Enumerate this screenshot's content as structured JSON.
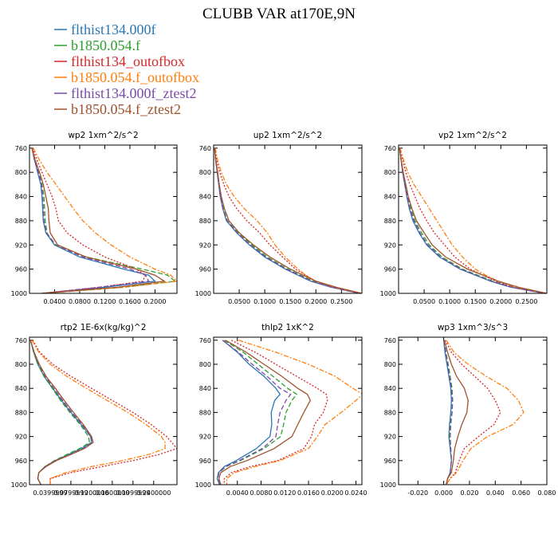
{
  "title": "CLUBB VAR at170E,9N",
  "legend": [
    {
      "name": "flthist134.000f",
      "color": "#2a77b4"
    },
    {
      "name": "b1850.054.f",
      "color": "#2ca02c"
    },
    {
      "name": "flthist134_outofbox",
      "color": "#d62728"
    },
    {
      "name": "b1850.054.f_outofbox",
      "color": "#ff7f0e"
    },
    {
      "name": "flthist134.000f_ztest2",
      "color": "#7b4aa6"
    },
    {
      "name": "b1850.054.f_ztest2",
      "color": "#a0522d"
    }
  ],
  "series_styles": [
    {
      "color": "#2a77b4",
      "dash": ""
    },
    {
      "color": "#2ca02c",
      "dash": "6,3"
    },
    {
      "color": "#d62728",
      "dash": "2,2"
    },
    {
      "color": "#ff7f0e",
      "dash": "6,2,2,2"
    },
    {
      "color": "#7b4aa6",
      "dash": "6,3"
    },
    {
      "color": "#a0522d",
      "dash": ""
    }
  ],
  "chart_data": [
    {
      "type": "line",
      "title": "wp2   1xm^2/s^2",
      "xlim": [
        0.0,
        0.235
      ],
      "ylim": [
        1000,
        755
      ],
      "y_reversed": true,
      "xticks": [
        0.04,
        0.08,
        0.12,
        0.16,
        0.2
      ],
      "xtick_labels": [
        "0.0400",
        "0.0800",
        "0.1200",
        "0.1600",
        "0.2000"
      ],
      "yticks": [
        760,
        800,
        840,
        880,
        920,
        960,
        1000
      ],
      "ytick_labels": [
        "760",
        "800",
        "840",
        "880",
        "920",
        "960",
        "1000"
      ],
      "y": [
        760,
        780,
        800,
        820,
        840,
        860,
        880,
        900,
        920,
        940,
        960,
        970,
        980,
        990,
        1000
      ],
      "series": [
        {
          "values": [
            0.004,
            0.008,
            0.013,
            0.018,
            0.02,
            0.021,
            0.022,
            0.026,
            0.04,
            0.08,
            0.15,
            0.19,
            0.2,
            0.12,
            0.02
          ]
        },
        {
          "values": [
            0.004,
            0.009,
            0.015,
            0.02,
            0.023,
            0.024,
            0.025,
            0.028,
            0.04,
            0.09,
            0.18,
            0.22,
            0.232,
            0.15,
            0.02
          ]
        },
        {
          "values": [
            0.005,
            0.012,
            0.02,
            0.028,
            0.036,
            0.042,
            0.046,
            0.06,
            0.085,
            0.12,
            0.17,
            0.185,
            0.18,
            0.11,
            0.02
          ]
        },
        {
          "values": [
            0.006,
            0.016,
            0.028,
            0.042,
            0.056,
            0.07,
            0.085,
            0.105,
            0.13,
            0.16,
            0.2,
            0.225,
            0.235,
            0.15,
            0.02
          ]
        },
        {
          "values": [
            0.004,
            0.008,
            0.014,
            0.019,
            0.021,
            0.022,
            0.023,
            0.027,
            0.042,
            0.085,
            0.16,
            0.185,
            0.19,
            0.11,
            0.02
          ]
        },
        {
          "values": [
            0.004,
            0.009,
            0.016,
            0.022,
            0.026,
            0.03,
            0.031,
            0.033,
            0.045,
            0.09,
            0.17,
            0.2,
            0.215,
            0.14,
            0.02
          ]
        }
      ]
    },
    {
      "type": "line",
      "title": "up2   1xm^2/s^2",
      "xlim": [
        0.0,
        0.29
      ],
      "ylim": [
        1000,
        755
      ],
      "y_reversed": true,
      "xticks": [
        0.05,
        0.1,
        0.15,
        0.2,
        0.25
      ],
      "xtick_labels": [
        "0.0500",
        "0.1000",
        "0.1500",
        "0.2000",
        "0.2500"
      ],
      "yticks": [
        760,
        800,
        840,
        880,
        920,
        960,
        1000
      ],
      "ytick_labels": [
        "760",
        "800",
        "840",
        "880",
        "920",
        "960",
        "1000"
      ],
      "y": [
        760,
        780,
        800,
        820,
        840,
        860,
        880,
        900,
        920,
        940,
        960,
        970,
        980,
        990,
        1000
      ],
      "series": [
        {
          "values": [
            0.002,
            0.004,
            0.007,
            0.01,
            0.013,
            0.018,
            0.025,
            0.045,
            0.07,
            0.1,
            0.14,
            0.165,
            0.19,
            0.23,
            0.285
          ]
        },
        {
          "values": [
            0.002,
            0.004,
            0.007,
            0.01,
            0.014,
            0.019,
            0.027,
            0.048,
            0.075,
            0.105,
            0.145,
            0.17,
            0.195,
            0.235,
            0.285
          ]
        },
        {
          "values": [
            0.003,
            0.006,
            0.012,
            0.02,
            0.03,
            0.045,
            0.065,
            0.09,
            0.11,
            0.135,
            0.16,
            0.18,
            0.2,
            0.235,
            0.285
          ]
        },
        {
          "values": [
            0.003,
            0.008,
            0.015,
            0.025,
            0.04,
            0.06,
            0.085,
            0.105,
            0.12,
            0.14,
            0.165,
            0.18,
            0.2,
            0.235,
            0.285
          ]
        },
        {
          "values": [
            0.002,
            0.004,
            0.007,
            0.01,
            0.013,
            0.018,
            0.026,
            0.046,
            0.072,
            0.102,
            0.142,
            0.167,
            0.192,
            0.232,
            0.285
          ]
        },
        {
          "values": [
            0.002,
            0.004,
            0.008,
            0.011,
            0.015,
            0.021,
            0.03,
            0.05,
            0.078,
            0.11,
            0.15,
            0.175,
            0.2,
            0.24,
            0.29
          ]
        }
      ]
    },
    {
      "type": "line",
      "title": "vp2   1xm^2/s^2",
      "xlim": [
        0.0,
        0.29
      ],
      "ylim": [
        1000,
        755
      ],
      "y_reversed": true,
      "xticks": [
        0.05,
        0.1,
        0.15,
        0.2,
        0.25
      ],
      "xtick_labels": [
        "0.0500",
        "0.1000",
        "0.1500",
        "0.2000",
        "0.2500"
      ],
      "yticks": [
        760,
        800,
        840,
        880,
        920,
        960,
        1000
      ],
      "ytick_labels": [
        "760",
        "800",
        "840",
        "880",
        "920",
        "960",
        "1000"
      ],
      "y": [
        760,
        780,
        800,
        820,
        840,
        860,
        880,
        900,
        920,
        940,
        960,
        970,
        980,
        990,
        1000
      ],
      "series": [
        {
          "values": [
            0.002,
            0.005,
            0.008,
            0.012,
            0.016,
            0.021,
            0.028,
            0.04,
            0.055,
            0.08,
            0.12,
            0.15,
            0.18,
            0.22,
            0.285
          ]
        },
        {
          "values": [
            0.002,
            0.005,
            0.009,
            0.013,
            0.018,
            0.024,
            0.032,
            0.045,
            0.06,
            0.085,
            0.125,
            0.155,
            0.185,
            0.225,
            0.285
          ]
        },
        {
          "values": [
            0.003,
            0.008,
            0.014,
            0.022,
            0.032,
            0.042,
            0.055,
            0.07,
            0.09,
            0.11,
            0.14,
            0.165,
            0.19,
            0.225,
            0.285
          ]
        },
        {
          "values": [
            0.003,
            0.01,
            0.018,
            0.03,
            0.045,
            0.06,
            0.075,
            0.09,
            0.105,
            0.125,
            0.15,
            0.17,
            0.195,
            0.23,
            0.285
          ]
        },
        {
          "values": [
            0.002,
            0.005,
            0.008,
            0.012,
            0.017,
            0.022,
            0.03,
            0.042,
            0.057,
            0.082,
            0.122,
            0.152,
            0.182,
            0.222,
            0.285
          ]
        },
        {
          "values": [
            0.002,
            0.005,
            0.009,
            0.014,
            0.019,
            0.026,
            0.035,
            0.05,
            0.066,
            0.092,
            0.135,
            0.165,
            0.195,
            0.235,
            0.29
          ]
        }
      ]
    },
    {
      "type": "line",
      "title": "rtp2   1E-6x(kg/kg)^2",
      "xlim": [
        0.0,
        0.285
      ],
      "ylim": [
        1000,
        755
      ],
      "y_reversed": true,
      "xticks": [
        0.04,
        0.08,
        0.12,
        0.16,
        0.2,
        0.24
      ],
      "xtick_labels": [
        "0.0399999",
        "0.0799999",
        "0.1200000",
        "0.1600000",
        "0.1999999",
        "0.2400000"
      ],
      "yticks": [
        760,
        800,
        840,
        880,
        920,
        960,
        1000
      ],
      "ytick_labels": [
        "760",
        "800",
        "840",
        "880",
        "920",
        "960",
        "1000"
      ],
      "y": [
        760,
        780,
        800,
        820,
        840,
        860,
        880,
        900,
        920,
        930,
        940,
        950,
        960,
        970,
        980,
        990,
        1000
      ],
      "series": [
        {
          "values": [
            0.002,
            0.008,
            0.016,
            0.028,
            0.045,
            0.062,
            0.08,
            0.1,
            0.118,
            0.12,
            0.1,
            0.075,
            0.05,
            0.03,
            0.018,
            0.016,
            0.022
          ]
        },
        {
          "values": [
            0.002,
            0.008,
            0.016,
            0.028,
            0.044,
            0.06,
            0.078,
            0.098,
            0.114,
            0.116,
            0.097,
            0.072,
            0.048,
            0.03,
            0.018,
            0.016,
            0.022
          ]
        },
        {
          "values": [
            0.006,
            0.02,
            0.045,
            0.08,
            0.12,
            0.16,
            0.2,
            0.235,
            0.265,
            0.275,
            0.285,
            0.25,
            0.2,
            0.14,
            0.08,
            0.04,
            0.04
          ]
        },
        {
          "values": [
            0.005,
            0.018,
            0.04,
            0.072,
            0.11,
            0.15,
            0.19,
            0.225,
            0.255,
            0.262,
            0.262,
            0.23,
            0.18,
            0.12,
            0.07,
            0.04,
            0.04
          ]
        },
        {
          "values": [
            0.002,
            0.009,
            0.018,
            0.03,
            0.047,
            0.064,
            0.082,
            0.102,
            0.118,
            0.122,
            0.104,
            0.078,
            0.05,
            0.03,
            0.018,
            0.016,
            0.022
          ]
        },
        {
          "values": [
            0.002,
            0.009,
            0.019,
            0.032,
            0.05,
            0.067,
            0.085,
            0.104,
            0.12,
            0.123,
            0.106,
            0.08,
            0.052,
            0.032,
            0.018,
            0.016,
            0.022
          ]
        }
      ]
    },
    {
      "type": "line",
      "title": "thlp2   1xK^2",
      "xlim": [
        0.0,
        0.025
      ],
      "ylim": [
        1000,
        755
      ],
      "y_reversed": true,
      "xticks": [
        0.004,
        0.008,
        0.012,
        0.016,
        0.02,
        0.024
      ],
      "xtick_labels": [
        "0.0040",
        "0.0080",
        "0.0120",
        "0.0160",
        "0.0200",
        "0.0240"
      ],
      "yticks": [
        760,
        800,
        840,
        880,
        920,
        960,
        1000
      ],
      "ytick_labels": [
        "760",
        "800",
        "840",
        "880",
        "920",
        "960",
        "1000"
      ],
      "y": [
        760,
        780,
        800,
        820,
        840,
        850,
        860,
        880,
        900,
        920,
        940,
        960,
        970,
        980,
        990,
        1000
      ],
      "series": [
        {
          "values": [
            0.0015,
            0.004,
            0.006,
            0.0085,
            0.0105,
            0.0112,
            0.0103,
            0.0097,
            0.0098,
            0.0095,
            0.0072,
            0.0038,
            0.0018,
            0.0008,
            0.0006,
            0.001
          ]
        },
        {
          "values": [
            0.0018,
            0.005,
            0.0075,
            0.01,
            0.0125,
            0.014,
            0.0132,
            0.0122,
            0.0118,
            0.0113,
            0.0085,
            0.0045,
            0.0021,
            0.0009,
            0.0007,
            0.0011
          ]
        },
        {
          "values": [
            0.003,
            0.007,
            0.0105,
            0.014,
            0.0175,
            0.019,
            0.0192,
            0.0185,
            0.017,
            0.0165,
            0.0152,
            0.0108,
            0.0062,
            0.003,
            0.0018,
            0.0018
          ]
        },
        {
          "values": [
            0.0042,
            0.0105,
            0.016,
            0.0205,
            0.0235,
            0.0252,
            0.024,
            0.0215,
            0.0188,
            0.0175,
            0.016,
            0.0112,
            0.007,
            0.0035,
            0.0022,
            0.0022
          ]
        },
        {
          "values": [
            0.0015,
            0.0042,
            0.0065,
            0.009,
            0.0112,
            0.013,
            0.0122,
            0.0112,
            0.0108,
            0.0105,
            0.0082,
            0.0043,
            0.002,
            0.0009,
            0.0007,
            0.0011
          ]
        },
        {
          "values": [
            0.002,
            0.0055,
            0.0085,
            0.0115,
            0.0142,
            0.0158,
            0.0163,
            0.0152,
            0.0142,
            0.0132,
            0.0102,
            0.0056,
            0.0028,
            0.0012,
            0.0009,
            0.0012
          ]
        }
      ]
    },
    {
      "type": "line",
      "title": "wp3   1xm^3/s^3",
      "xlim": [
        -0.035,
        0.08
      ],
      "ylim": [
        1000,
        755
      ],
      "y_reversed": true,
      "xticks": [
        -0.02,
        0.0,
        0.02,
        0.04,
        0.06,
        0.08
      ],
      "xtick_labels": [
        "-0.020",
        "0.000",
        "0.020",
        "0.040",
        "0.060",
        "0.080"
      ],
      "yticks": [
        760,
        800,
        840,
        880,
        920,
        960,
        1000
      ],
      "ytick_labels": [
        "760",
        "800",
        "840",
        "880",
        "920",
        "960",
        "1000"
      ],
      "y": [
        760,
        780,
        800,
        820,
        840,
        860,
        880,
        900,
        920,
        940,
        960,
        980,
        990,
        1000
      ],
      "series": [
        {
          "values": [
            0.0,
            0.001,
            0.0025,
            0.004,
            0.0055,
            0.006,
            0.0055,
            0.0045,
            0.004,
            0.005,
            0.006,
            0.005,
            0.003,
            0.002
          ]
        },
        {
          "values": [
            0.0005,
            0.0018,
            0.0035,
            0.005,
            0.0065,
            0.007,
            0.0065,
            0.005,
            0.0045,
            0.0055,
            0.006,
            0.005,
            0.003,
            0.002
          ]
        },
        {
          "values": [
            0.001,
            0.006,
            0.014,
            0.024,
            0.034,
            0.04,
            0.044,
            0.039,
            0.027,
            0.016,
            0.012,
            0.009,
            0.005,
            0.002
          ]
        },
        {
          "values": [
            0.002,
            0.008,
            0.019,
            0.033,
            0.049,
            0.058,
            0.062,
            0.054,
            0.034,
            0.021,
            0.015,
            0.01,
            0.005,
            0.002
          ]
        },
        {
          "values": [
            0.0003,
            0.0015,
            0.003,
            0.0045,
            0.006,
            0.0068,
            0.0065,
            0.0055,
            0.005,
            0.0055,
            0.006,
            0.005,
            0.003,
            0.002
          ]
        },
        {
          "values": [
            0.0005,
            0.003,
            0.006,
            0.01,
            0.016,
            0.019,
            0.018,
            0.014,
            0.011,
            0.0085,
            0.0075,
            0.006,
            0.003,
            0.002
          ]
        }
      ]
    }
  ]
}
